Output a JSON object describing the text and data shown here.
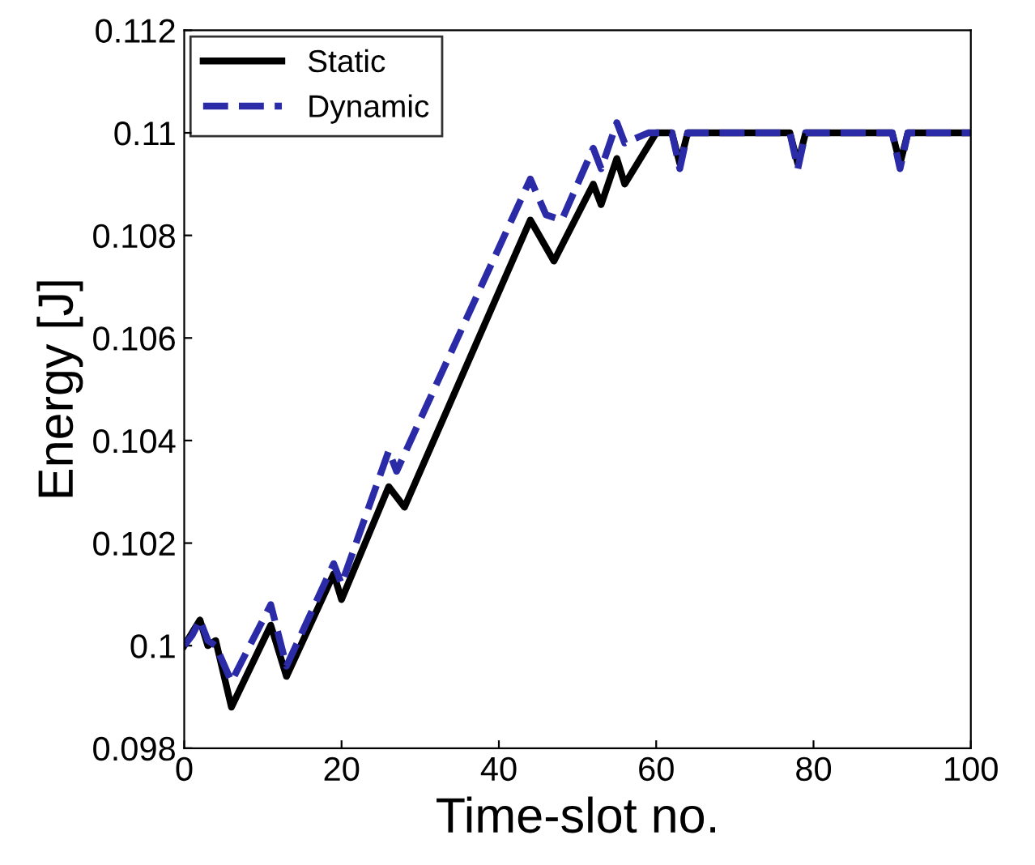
{
  "chart_data": {
    "type": "line",
    "xlabel": "Time-slot no.",
    "ylabel": "Energy [J]",
    "xlim": [
      0,
      100
    ],
    "xticks": [
      0,
      20,
      40,
      60,
      80,
      100
    ],
    "ylim": [
      0.098,
      0.112
    ],
    "yticks": [
      0.098,
      0.1,
      0.102,
      0.104,
      0.106,
      0.108,
      0.11,
      0.112
    ],
    "grid": false,
    "legend": "top left",
    "series": [
      {
        "name": "Static",
        "color": "#000000",
        "line_style": "solid",
        "x": [
          0,
          2,
          3,
          4,
          6,
          11,
          13,
          19,
          20,
          26,
          28,
          44,
          47,
          52,
          53,
          55,
          56,
          60,
          62,
          63,
          64,
          77,
          78,
          79,
          90,
          91,
          92,
          100
        ],
        "values": [
          0.1,
          0.1005,
          0.1,
          0.1001,
          0.0988,
          0.1004,
          0.0994,
          0.1014,
          0.1009,
          0.1031,
          0.1027,
          0.1083,
          0.1075,
          0.109,
          0.1086,
          0.1095,
          0.109,
          0.11,
          0.11,
          0.1094,
          0.11,
          0.11,
          0.1094,
          0.11,
          0.11,
          0.1094,
          0.11,
          0.11
        ]
      },
      {
        "name": "Dynamic",
        "color": "#2b2ba8",
        "line_style": "dashed",
        "x": [
          0,
          1,
          2,
          3,
          4,
          6,
          11,
          13,
          19,
          20,
          26,
          27,
          44,
          46,
          48,
          52,
          53,
          55,
          56,
          59,
          62,
          63,
          64,
          77,
          78,
          79,
          90,
          91,
          92,
          100
        ],
        "values": [
          0.1,
          0.1002,
          0.1005,
          0.1001,
          0.1,
          0.0993,
          0.1008,
          0.0996,
          0.1016,
          0.1012,
          0.1038,
          0.1034,
          0.1091,
          0.1084,
          0.1083,
          0.1097,
          0.1093,
          0.1102,
          0.1098,
          0.11,
          0.11,
          0.1093,
          0.11,
          0.11,
          0.1093,
          0.11,
          0.11,
          0.1093,
          0.11,
          0.11
        ]
      }
    ]
  }
}
